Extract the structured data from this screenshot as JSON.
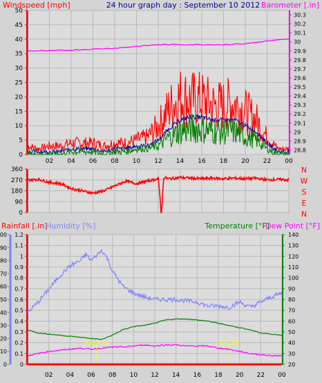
{
  "chart_data": [
    {
      "type": "line",
      "title": "24 hour graph day : September 10 2012",
      "left_axis_label": "Windspeed [mph]",
      "right_axis_label": "Barometer [.in]",
      "left_ticks": [
        "0",
        "5",
        "10",
        "15",
        "20",
        "25",
        "30",
        "35",
        "40",
        "45",
        "50"
      ],
      "right_ticks": [
        "28.8",
        "28.9",
        "29",
        "29.1",
        "29.2",
        "29.3",
        "29.4",
        "29.5",
        "29.6",
        "29.7",
        "29.8",
        "29.9",
        "30",
        "30.1",
        "30.2",
        "30.3"
      ],
      "ylim_left": [
        0,
        50
      ],
      "ylim_right": [
        28.75,
        30.35
      ],
      "x_ticks": [
        "02",
        "04",
        "06",
        "08",
        "10",
        "12",
        "14",
        "16",
        "18",
        "20",
        "22",
        "00"
      ],
      "x_hours": [
        2,
        4,
        6,
        8,
        10,
        12,
        14,
        16,
        18,
        20,
        22,
        24
      ],
      "xlim": [
        0,
        24
      ],
      "grid": true,
      "series": [
        {
          "key": "gust",
          "color": "#ff0000",
          "x": [
            0,
            1,
            2,
            3,
            4,
            5,
            6,
            7,
            8,
            9,
            10,
            11,
            12,
            13,
            14,
            15,
            16,
            17,
            18,
            19,
            20,
            21,
            22,
            23,
            24
          ],
          "y": [
            3,
            2,
            3,
            3,
            4,
            4,
            4,
            3,
            4,
            4,
            5,
            6,
            10,
            16,
            20,
            19,
            19,
            17,
            17,
            18,
            15,
            12,
            6,
            2,
            2
          ]
        },
        {
          "key": "avg",
          "color": "#000099",
          "x": [
            0,
            1,
            2,
            3,
            4,
            5,
            6,
            7,
            8,
            9,
            10,
            11,
            12,
            13,
            14,
            15,
            16,
            17,
            18,
            19,
            20,
            21,
            22,
            23,
            24
          ],
          "y": [
            1,
            1,
            1,
            1,
            2,
            2,
            2,
            1,
            2,
            2,
            3,
            3,
            5,
            9,
            12,
            13,
            13,
            12,
            12,
            12,
            10,
            8,
            4,
            1,
            1
          ]
        },
        {
          "key": "wind",
          "color": "#008000",
          "x": [
            0,
            1,
            2,
            3,
            4,
            5,
            6,
            7,
            8,
            9,
            10,
            11,
            12,
            13,
            14,
            15,
            16,
            17,
            18,
            19,
            20,
            21,
            22,
            23,
            24
          ],
          "y": [
            0,
            0,
            0,
            0,
            1,
            1,
            1,
            0,
            1,
            1,
            2,
            2,
            3,
            6,
            8,
            9,
            9,
            8,
            8,
            8,
            6,
            5,
            2,
            0,
            0
          ]
        },
        {
          "key": "baro",
          "color": "#ff00ff",
          "axis": "right",
          "x": [
            0,
            2,
            4,
            6,
            8,
            10,
            12,
            14,
            16,
            18,
            20,
            22,
            24
          ],
          "y": [
            29.9,
            29.9,
            29.91,
            29.92,
            29.93,
            29.95,
            29.97,
            29.97,
            29.97,
            29.97,
            29.98,
            30.01,
            30.03
          ]
        }
      ]
    },
    {
      "type": "line",
      "left_ticks": [
        "0",
        "90",
        "180",
        "270",
        "360"
      ],
      "right_ticks": [
        "N",
        "W",
        "S",
        "E",
        "N"
      ],
      "ylim": [
        0,
        360
      ],
      "x_ticks": [
        "02",
        "04",
        "06",
        "08",
        "10",
        "12",
        "14",
        "16",
        "18",
        "20",
        "22",
        "00"
      ],
      "xlim": [
        0,
        24
      ],
      "grid": true,
      "series": [
        {
          "key": "direction",
          "color": "#ff0000",
          "x": [
            0,
            1,
            2,
            3,
            4,
            5,
            6,
            7,
            8,
            9,
            10,
            11,
            12,
            12.3,
            12.5,
            13,
            14,
            15,
            16,
            17,
            18,
            19,
            20,
            21,
            22,
            23,
            24
          ],
          "y": [
            270,
            275,
            250,
            240,
            200,
            180,
            160,
            180,
            220,
            260,
            240,
            260,
            280,
            0,
            290,
            280,
            290,
            285,
            280,
            285,
            280,
            285,
            280,
            285,
            270,
            275,
            270
          ]
        }
      ]
    },
    {
      "type": "line",
      "rain_label": "Rainfall [.in]",
      "humidity_label": "Humidity [%]",
      "temperature_label": "Temperature [°F]",
      "dewpoint_label": "Dew Point [°F]",
      "rain_ticks": [
        "0",
        "0.1",
        "0.2",
        "0.3",
        "0.4",
        "0.5",
        "0.6",
        "0.7",
        "0.8",
        "0.9",
        "1",
        "1.1",
        "1.2"
      ],
      "humidity_ticks": [
        "0",
        "10",
        "20",
        "30",
        "40",
        "50",
        "60",
        "70",
        "80",
        "90",
        "100"
      ],
      "temp_ticks": [
        "20",
        "30",
        "40",
        "50",
        "60",
        "70",
        "80",
        "90",
        "100",
        "110",
        "120",
        "130",
        "140"
      ],
      "x_ticks": [
        "02",
        "04",
        "06",
        "08",
        "10",
        "12",
        "14",
        "16",
        "18",
        "20",
        "22",
        "00"
      ],
      "xlim": [
        0,
        24
      ],
      "grid": true,
      "annotations": [
        {
          "text": "Sun Rise",
          "x": 6.5
        },
        {
          "text": "Sun Set",
          "x": 19.0
        }
      ],
      "series": [
        {
          "key": "humidity",
          "color": "#8080ff",
          "axis": "humidity",
          "x": [
            0,
            1,
            2,
            3,
            4,
            5,
            5.5,
            6,
            7,
            7.5,
            8,
            9,
            10,
            11,
            12,
            13,
            14,
            15,
            16,
            17,
            18,
            19,
            20,
            21,
            22,
            23,
            24
          ],
          "y": [
            40,
            48,
            58,
            68,
            76,
            80,
            85,
            80,
            88,
            82,
            72,
            60,
            55,
            52,
            50,
            50,
            50,
            49,
            48,
            45,
            45,
            44,
            48,
            44,
            48,
            52,
            55
          ]
        },
        {
          "key": "temperature",
          "color": "#008000",
          "axis": "temp",
          "x": [
            0,
            1,
            2,
            3,
            4,
            5,
            6,
            7,
            8,
            9,
            10,
            11,
            12,
            13,
            14,
            15,
            16,
            17,
            18,
            19,
            20,
            21,
            22,
            23,
            24
          ],
          "y": [
            52,
            49,
            48,
            47,
            46,
            45,
            44,
            43,
            47,
            52,
            55,
            56,
            58,
            61,
            62,
            62,
            61,
            60,
            58,
            56,
            54,
            52,
            49,
            48,
            47
          ]
        },
        {
          "key": "dewpoint",
          "color": "#ff00ff",
          "axis": "temp",
          "x": [
            0,
            1,
            2,
            3,
            4,
            5,
            6,
            7,
            8,
            9,
            10,
            11,
            12,
            13,
            14,
            15,
            16,
            17,
            18,
            19,
            20,
            21,
            22,
            23,
            24
          ],
          "y": [
            28,
            30,
            32,
            33,
            34,
            35,
            34,
            35,
            36,
            36,
            37,
            38,
            37,
            38,
            38,
            37,
            37,
            37,
            35,
            34,
            32,
            30,
            29,
            28,
            28
          ]
        },
        {
          "key": "rain",
          "color": "#ff0000",
          "axis": "rain",
          "x": [
            0,
            24
          ],
          "y": [
            0,
            0
          ]
        }
      ]
    }
  ]
}
